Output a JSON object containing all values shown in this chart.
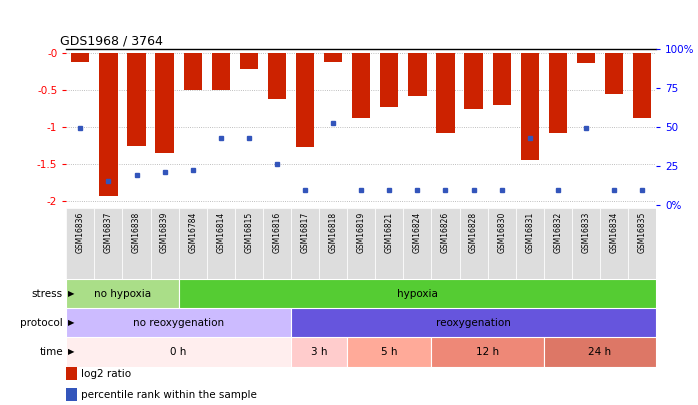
{
  "title": "GDS1968 / 3764",
  "samples": [
    "GSM16836",
    "GSM16837",
    "GSM16838",
    "GSM16839",
    "GSM16784",
    "GSM16814",
    "GSM16815",
    "GSM16816",
    "GSM16817",
    "GSM16818",
    "GSM16819",
    "GSM16821",
    "GSM16824",
    "GSM16826",
    "GSM16828",
    "GSM16830",
    "GSM16831",
    "GSM16832",
    "GSM16833",
    "GSM16834",
    "GSM16835"
  ],
  "log2_ratio": [
    -0.13,
    -1.93,
    -1.25,
    -1.35,
    -0.5,
    -0.5,
    -0.22,
    -0.62,
    -1.27,
    -0.12,
    -0.88,
    -0.73,
    -0.58,
    -1.08,
    -0.76,
    -0.7,
    -1.45,
    -1.08,
    -0.14,
    -0.55,
    -0.88
  ],
  "percentile_rank_y": [
    -1.02,
    -1.73,
    -1.65,
    -1.6,
    -1.58,
    -1.15,
    -1.15,
    -1.5,
    -1.85,
    -0.95,
    -1.85,
    -1.85,
    -1.85,
    -1.85,
    -1.85,
    -1.85,
    -1.15,
    -1.85,
    -1.02,
    -1.85,
    -1.85
  ],
  "bar_color": "#cc2200",
  "dot_color": "#3355bb",
  "ylim_min": -2.05,
  "ylim_max": 0.05,
  "yticks": [
    -2.0,
    -1.5,
    -1.0,
    -0.5,
    0.0
  ],
  "ytick_labels": [
    "-2",
    "-1.5",
    "-1",
    "-0.5",
    "-0"
  ],
  "right_ytick_values": [
    0,
    25,
    50,
    75,
    100
  ],
  "right_ytick_labels": [
    "0%",
    "25",
    "50",
    "75",
    "100%"
  ],
  "stress_groups": [
    {
      "label": "no hypoxia",
      "start": 0,
      "end": 4,
      "color": "#aade88"
    },
    {
      "label": "hypoxia",
      "start": 4,
      "end": 21,
      "color": "#55cc33"
    }
  ],
  "protocol_groups": [
    {
      "label": "no reoxygenation",
      "start": 0,
      "end": 8,
      "color": "#ccbbff"
    },
    {
      "label": "reoxygenation",
      "start": 8,
      "end": 21,
      "color": "#6655dd"
    }
  ],
  "time_groups": [
    {
      "label": "0 h",
      "start": 0,
      "end": 8,
      "color": "#ffeeee"
    },
    {
      "label": "3 h",
      "start": 8,
      "end": 10,
      "color": "#ffcccc"
    },
    {
      "label": "5 h",
      "start": 10,
      "end": 13,
      "color": "#ffaa99"
    },
    {
      "label": "12 h",
      "start": 13,
      "end": 17,
      "color": "#ee8877"
    },
    {
      "label": "24 h",
      "start": 17,
      "end": 21,
      "color": "#dd7766"
    }
  ],
  "row_labels": [
    "stress",
    "protocol",
    "time"
  ],
  "legend_items": [
    {
      "label": "log2 ratio",
      "color": "#cc2200",
      "marker": "s"
    },
    {
      "label": "percentile rank within the sample",
      "color": "#3355bb",
      "marker": "s"
    }
  ],
  "bg_color": "#ffffff",
  "grid_color": "#aaaaaa",
  "bar_width": 0.65
}
